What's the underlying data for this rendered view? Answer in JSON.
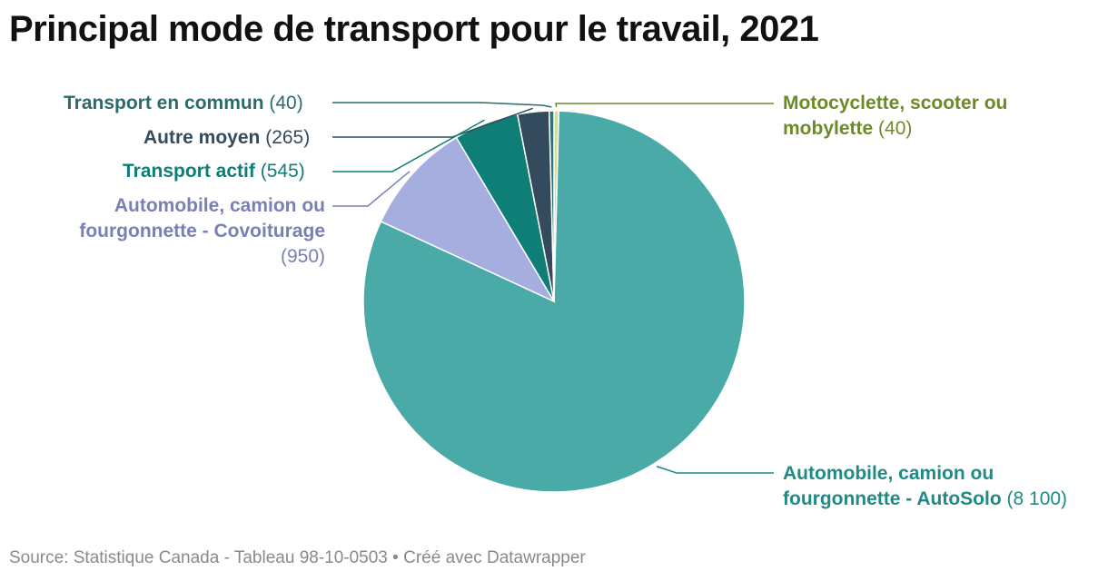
{
  "title": "Principal mode de transport pour le travail, 2021",
  "footer": {
    "source": "Source: Statistique Canada - Tableau 98-10-0503",
    "separator": "•",
    "credit": "Créé avec Datawrapper"
  },
  "chart_data": {
    "type": "pie",
    "title": "Principal mode de transport pour le travail, 2021",
    "slices": [
      {
        "name": "Automobile, camion ou fourgonnette - AutoSolo",
        "value": 8100,
        "value_label": "(8 100)",
        "color": "#49aaa7",
        "label_color": "#1f8a86"
      },
      {
        "name": "Automobile, camion ou fourgonnette - Covoiturage",
        "value": 950,
        "value_label": "(950)",
        "color": "#a5aedf",
        "label_color": "#7a80b4"
      },
      {
        "name": "Transport actif",
        "value": 545,
        "value_label": "(545)",
        "color": "#0e7e76",
        "label_color": "#0e7e76"
      },
      {
        "name": "Autre moyen",
        "value": 265,
        "value_label": "(265)",
        "color": "#344b5e",
        "label_color": "#344b5e"
      },
      {
        "name": "Transport en commun",
        "value": 40,
        "value_label": "(40)",
        "color": "#2b7575",
        "label_color": "#2b6b6a"
      },
      {
        "name": "Motocyclette, scooter ou mobylette",
        "value": 40,
        "value_label": "(40)",
        "color": "#d6df85",
        "label_color": "#6e8a26"
      }
    ]
  }
}
